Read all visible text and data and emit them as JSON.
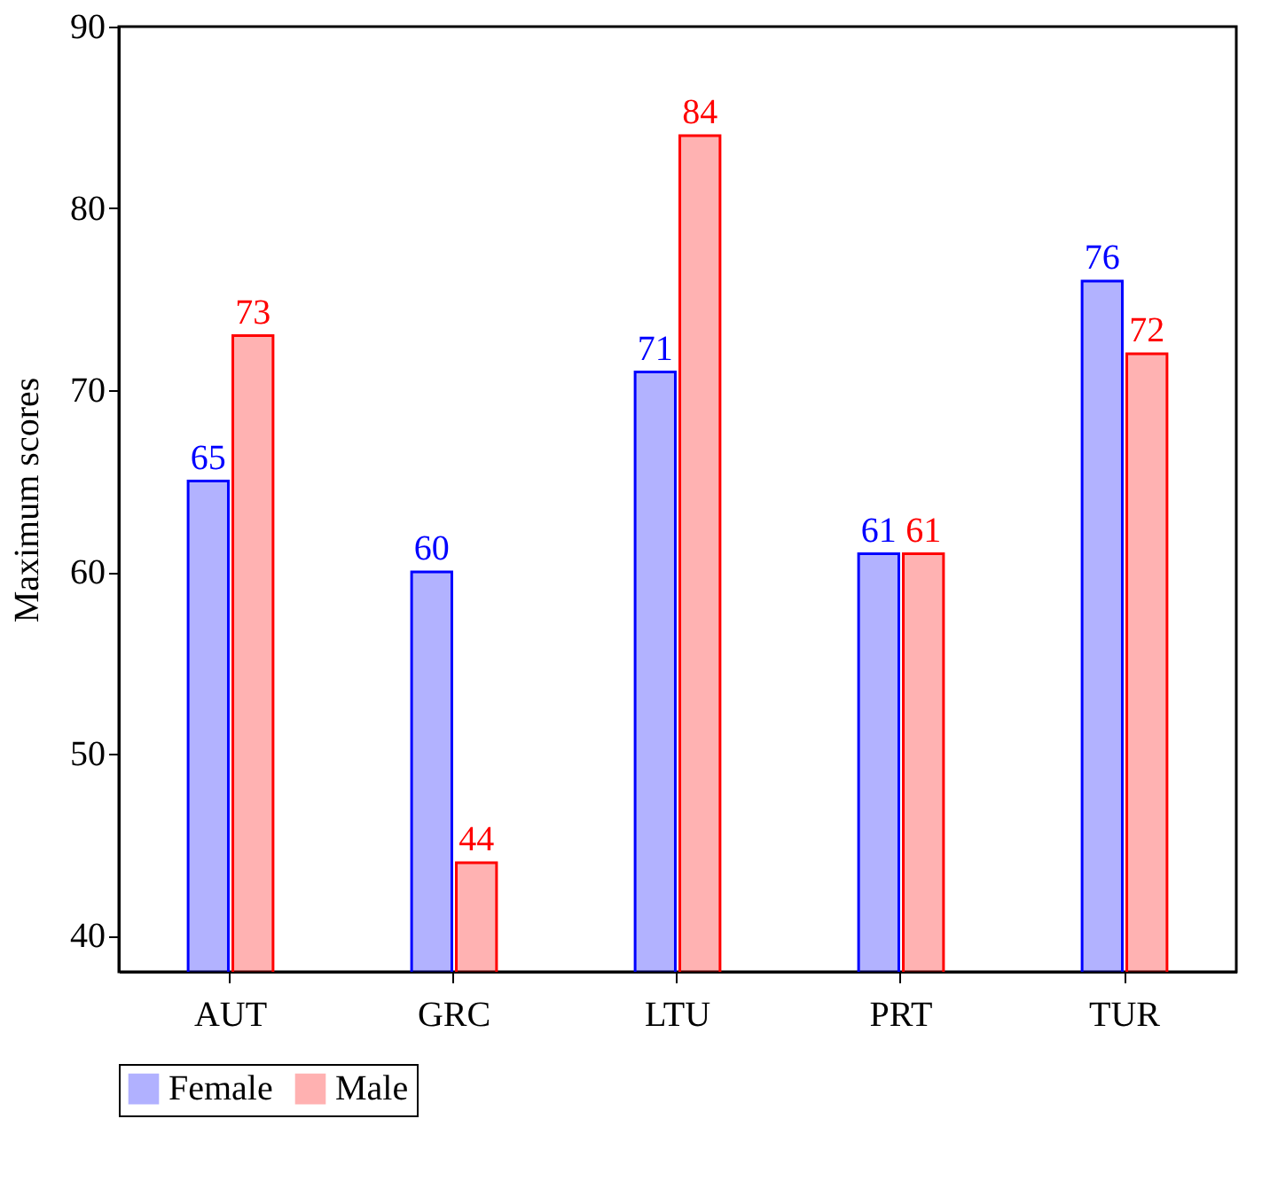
{
  "chart_data": {
    "type": "bar",
    "ylabel": "Maximum scores",
    "categories": [
      "AUT",
      "GRC",
      "LTU",
      "PRT",
      "TUR"
    ],
    "series": [
      {
        "name": "Female",
        "color": "#0000ff",
        "values": [
          65,
          60,
          71,
          61,
          76
        ]
      },
      {
        "name": "Male",
        "color": "#ff0000",
        "values": [
          73,
          44,
          84,
          61,
          72
        ]
      }
    ],
    "ylim": [
      38,
      90
    ],
    "yticks": [
      40,
      50,
      60,
      70,
      80,
      90
    ],
    "grid": false,
    "legend": "bottom",
    "data_labels": true
  }
}
